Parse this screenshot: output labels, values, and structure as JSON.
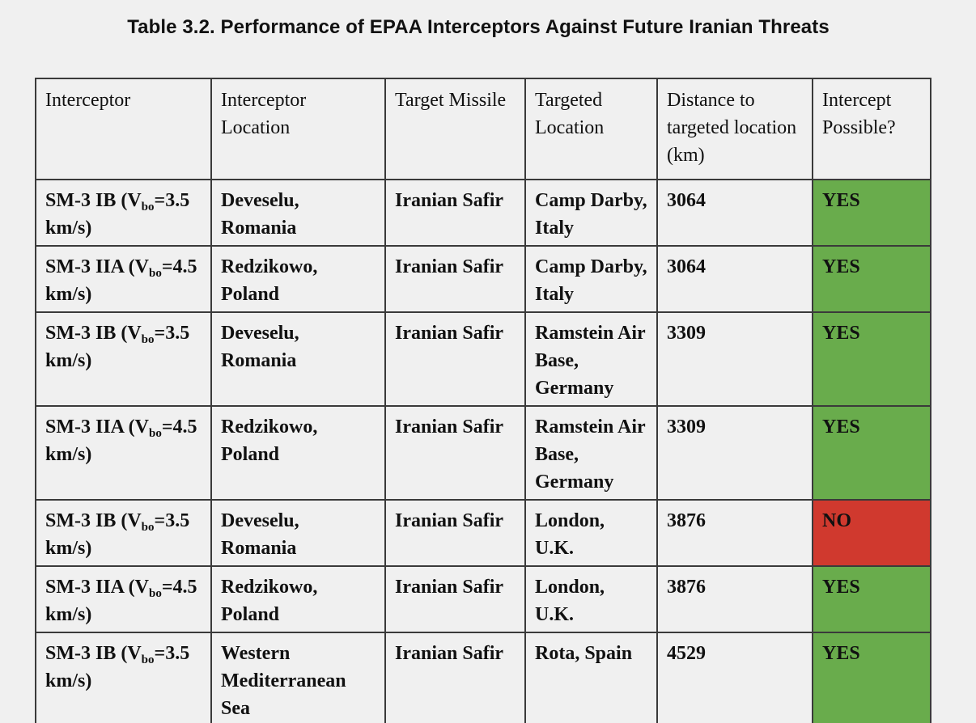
{
  "caption": "Table 3.2. Performance of EPAA Interceptors Against Future Iranian Threats",
  "headers": {
    "interceptor": "Interceptor",
    "interceptor_location": "Interceptor Location",
    "target_missile": "Target Missile",
    "targeted_location": "Targeted Location",
    "distance": "Distance to targeted location (km)",
    "intercept_possible": "Intercept Possible?"
  },
  "interceptor_names": {
    "sm3ib_name": "SM-3 IB (V",
    "sm3ib_speed": "=3.5 km/s)",
    "sm3iia_name": "SM-3 IIA (V",
    "sm3iia_speed": "=4.5 km/s)",
    "subscript": "bo"
  },
  "rows": [
    {
      "interceptor_type": "SM-3 IB",
      "location": "Deveselu, Romania",
      "missile": "Iranian Safir",
      "target": "Camp Darby, Italy",
      "distance": "3064",
      "possible": "YES"
    },
    {
      "interceptor_type": "SM-3 IIA",
      "location": "Redzikowo, Poland",
      "missile": "Iranian Safir",
      "target": "Camp Darby, Italy",
      "distance": "3064",
      "possible": "YES"
    },
    {
      "interceptor_type": "SM-3 IB",
      "location": "Deveselu, Romania",
      "missile": "Iranian Safir",
      "target": "Ramstein Air Base, Germany",
      "distance": "3309",
      "possible": "YES"
    },
    {
      "interceptor_type": "SM-3 IIA",
      "location": "Redzikowo, Poland",
      "missile": "Iranian Safir",
      "target": "Ramstein Air Base, Germany",
      "distance": "3309",
      "possible": "YES"
    },
    {
      "interceptor_type": "SM-3 IB",
      "location": "Deveselu, Romania",
      "missile": "Iranian Safir",
      "target": "London, U.K.",
      "distance": "3876",
      "possible": "NO"
    },
    {
      "interceptor_type": "SM-3 IIA",
      "location": "Redzikowo, Poland",
      "missile": "Iranian Safir",
      "target": "London, U.K.",
      "distance": "3876",
      "possible": "YES"
    },
    {
      "interceptor_type": "SM-3 IB",
      "location": "Western Mediterranean Sea",
      "missile": "Iranian Safir",
      "target": "Rota, Spain",
      "distance": "4529",
      "possible": "YES"
    }
  ],
  "colors": {
    "yes": "#69ac4c",
    "no": "#d0392e",
    "background": "#f0f0f0"
  }
}
